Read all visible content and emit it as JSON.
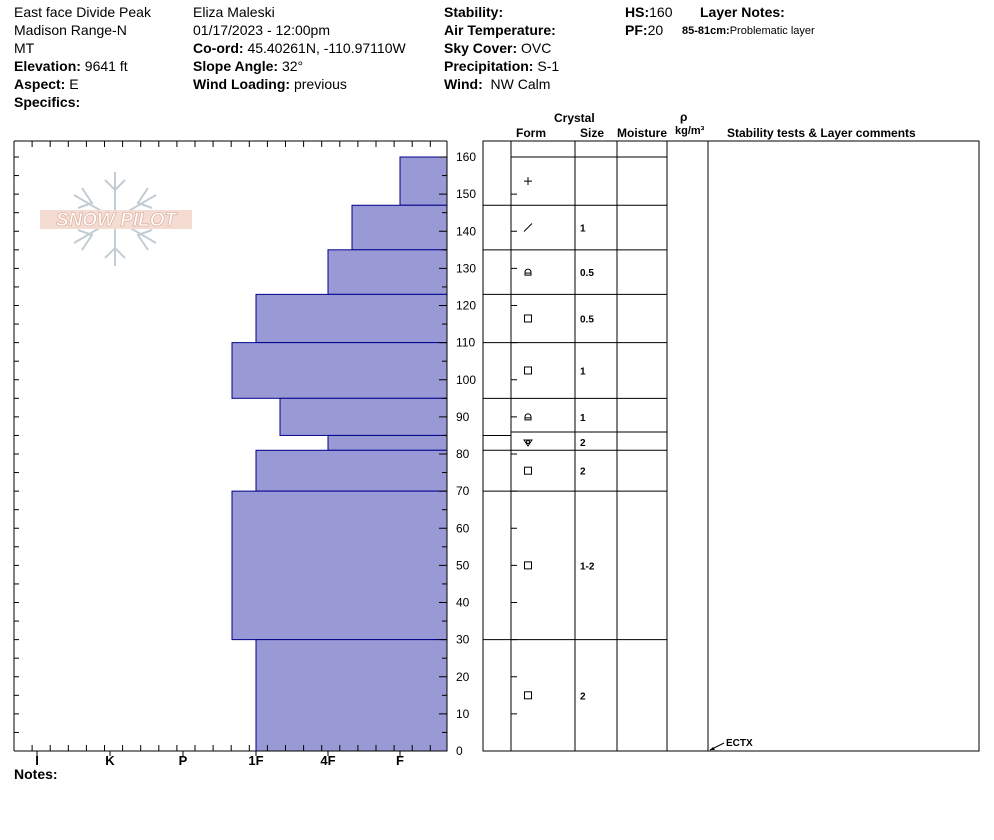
{
  "site": {
    "location": "East face Divide Peak",
    "range": "Madison Range-N",
    "state": "MT",
    "elevation_label": "Elevation:",
    "elevation": "9641 ft",
    "aspect_label": "Aspect:",
    "aspect": "E",
    "specifics_label": "Specifics:"
  },
  "observer": {
    "name": "Eliza Maleski",
    "datetime": "01/17/2023 - 12:00pm",
    "coord_label": "Co-ord:",
    "coord": "45.40261N, -110.97110W",
    "slope_label": "Slope Angle:",
    "slope": "32°",
    "wind_loading_label": "Wind Loading:",
    "wind_loading": "previous"
  },
  "conditions": {
    "stability_label": "Stability:",
    "stability": "",
    "air_temp_label": "Air Temperature:",
    "air_temp": "",
    "sky_label": "Sky Cover:",
    "sky": "OVC",
    "precip_label": "Precipitation:",
    "precip": "S-1",
    "wind_label": "Wind:",
    "wind": "NW Calm"
  },
  "snowpack": {
    "hs_label": "HS:",
    "hs": "160",
    "pf_label": "PF:",
    "pf": "20",
    "layer_notes_label": "Layer Notes:",
    "layer_note_range": "85-81cm:",
    "layer_note_text": "Problematic layer"
  },
  "columns": {
    "crystal": "Crystal",
    "form": "Form",
    "size": "Size",
    "moisture": "Moisture",
    "rho": "ρ",
    "density_unit": "kg/m³",
    "stability_comments": "Stability tests & Layer comments"
  },
  "notes_label": "Notes:",
  "logo_text": "SNOW PILOT",
  "colors": {
    "layer_fill": "#9999d6",
    "layer_stroke": "#00008b"
  },
  "chart_data": {
    "type": "bar",
    "orientation": "horizontal",
    "y_axis": {
      "min": 0,
      "max": 160,
      "ticks": [
        0,
        10,
        20,
        30,
        40,
        50,
        60,
        70,
        80,
        90,
        100,
        110,
        120,
        130,
        140,
        150,
        160
      ]
    },
    "hardness_scale": [
      "I",
      "K",
      "P",
      "1F",
      "4F",
      "F"
    ],
    "layers": [
      {
        "top": 160,
        "bottom": 147,
        "hardness": "F",
        "form": "+",
        "size": ""
      },
      {
        "top": 147,
        "bottom": 135,
        "hardness": "4F+",
        "form": "/",
        "size": "1"
      },
      {
        "top": 135,
        "bottom": 123,
        "hardness": "4F",
        "form": "faceted-rounded",
        "size": "0.5"
      },
      {
        "top": 123,
        "bottom": 110,
        "hardness": "1F",
        "form": "facets",
        "size": "0.5"
      },
      {
        "top": 110,
        "bottom": 95,
        "hardness": "1F-",
        "form": "facets",
        "size": "1"
      },
      {
        "top": 95,
        "bottom": 85,
        "hardness": "1F+",
        "form": "faceted-rounded",
        "size": "1"
      },
      {
        "top": 85,
        "bottom": 81,
        "hardness": "4F",
        "form": "surface-hoar",
        "size": "2"
      },
      {
        "top": 81,
        "bottom": 70,
        "hardness": "1F",
        "form": "facets",
        "size": "2"
      },
      {
        "top": 70,
        "bottom": 30,
        "hardness": "1F-",
        "form": "facets",
        "size": "1-2"
      },
      {
        "top": 30,
        "bottom": 0,
        "hardness": "1F",
        "form": "facets",
        "size": "2"
      }
    ],
    "stability_tests": [
      {
        "depth": 0,
        "label": "ECTX"
      }
    ]
  }
}
